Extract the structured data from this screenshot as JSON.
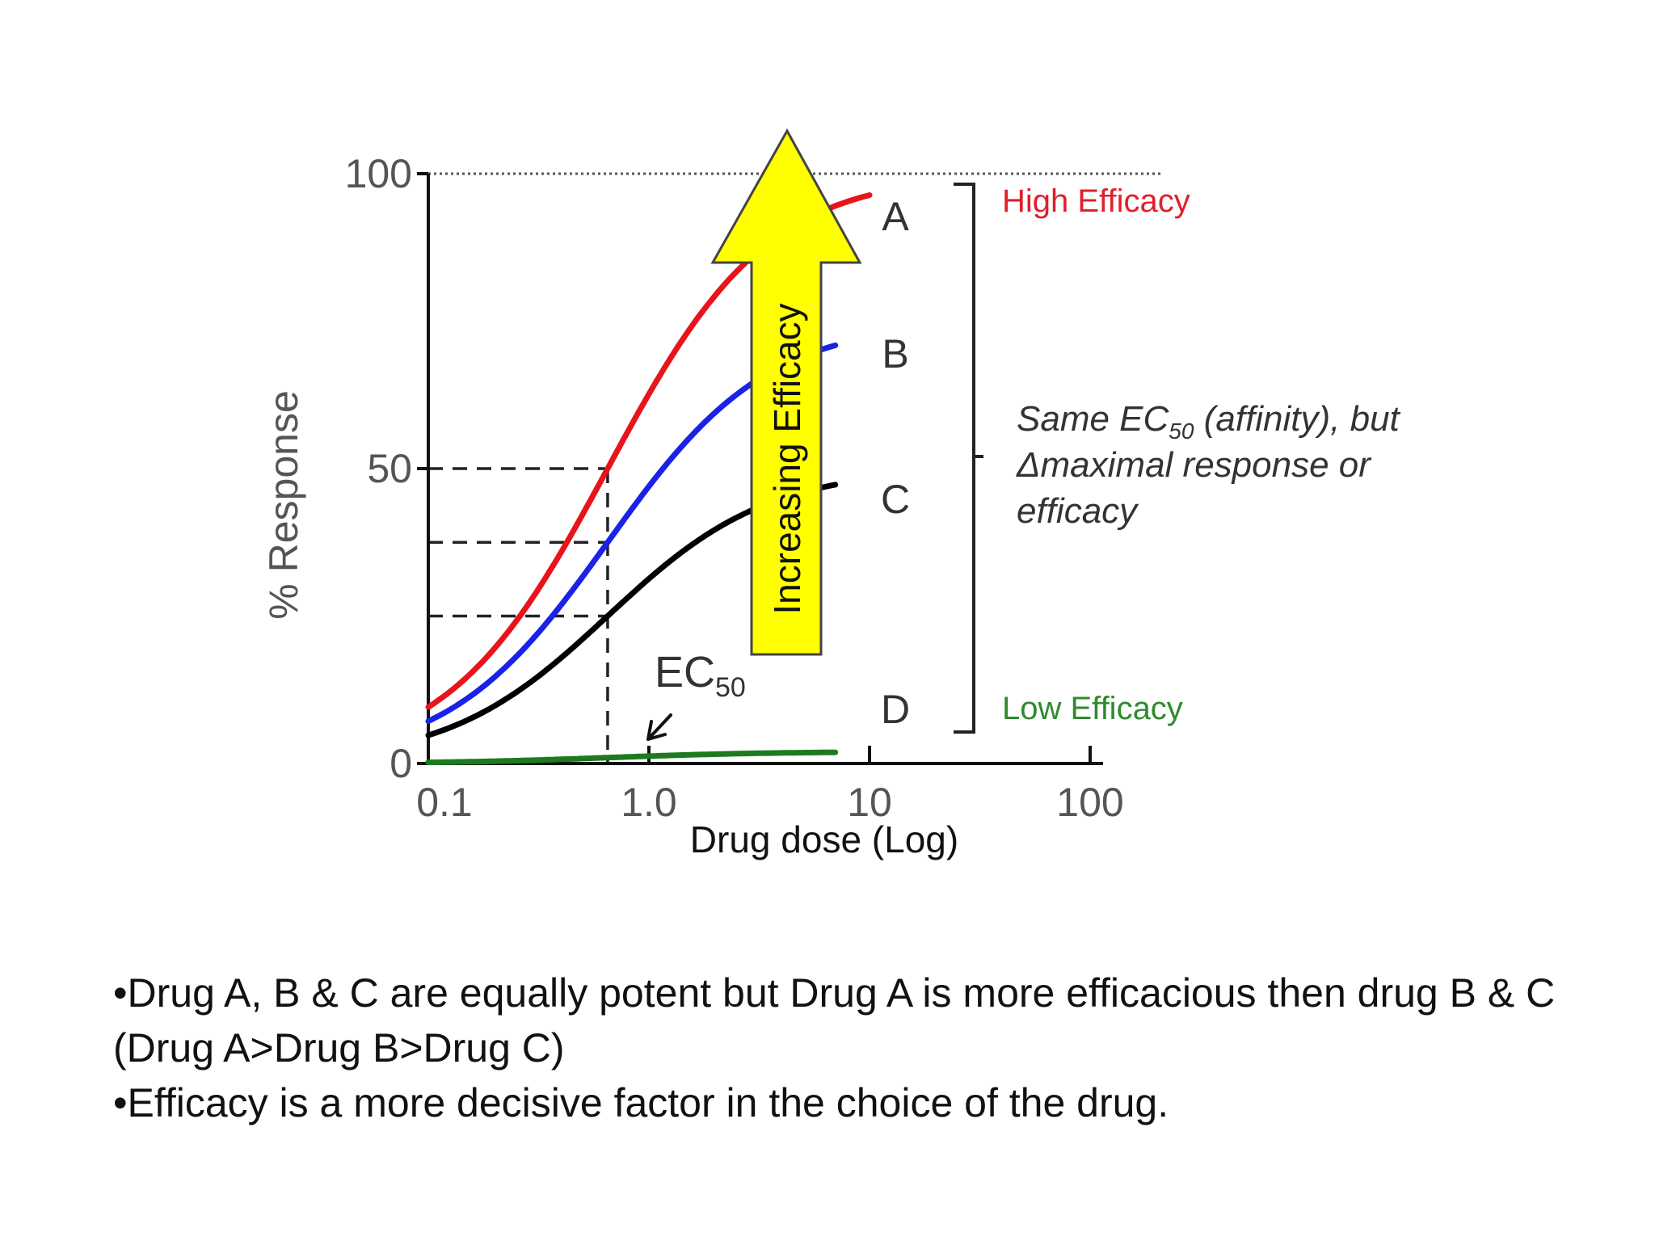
{
  "chart_data": {
    "type": "line",
    "xscale": "log",
    "xlim": [
      0.1,
      100
    ],
    "ylim": [
      0,
      100
    ],
    "x_ticks": [
      "0.1",
      "1.0",
      "10",
      "100"
    ],
    "y_ticks": [
      "0",
      "50",
      "100"
    ],
    "ylabel": "% Response",
    "xlabel": "Drug dose (Log)",
    "ec50": 0.65,
    "ec50_label": "EC",
    "ec50_sub": "50",
    "series": [
      {
        "name": "A",
        "color": "#e8141c",
        "emax": 100,
        "x": [
          0.1,
          10
        ],
        "values": [
          0,
          100
        ]
      },
      {
        "name": "B",
        "color": "#1a22e8",
        "emax": 75,
        "x": [
          0.1,
          7
        ],
        "values": [
          0,
          75
        ]
      },
      {
        "name": "C",
        "color": "#000000",
        "emax": 50,
        "x": [
          0.1,
          7
        ],
        "values": [
          0,
          50
        ]
      },
      {
        "name": "D",
        "color": "#1e7a1e",
        "emax": 2,
        "x": [
          0.1,
          7
        ],
        "values": [
          0,
          2
        ]
      }
    ],
    "arrow_label": "Increasing Efficacy",
    "arrow_color": "#ffff00",
    "high_efficacy": "High Efficacy",
    "low_efficacy": "Low Efficacy",
    "note": {
      "line1_a": "Same EC",
      "line1_sub": "50",
      "line1_b": " (affinity), but",
      "line2": "Δmaximal response or",
      "line3": "efficacy"
    }
  },
  "bullets": [
    "•Drug A, B & C are equally potent but Drug A is more efficacious then drug B & C (Drug A>Drug B>Drug C)",
    "•Efficacy is a more decisive factor in the choice of the drug."
  ]
}
